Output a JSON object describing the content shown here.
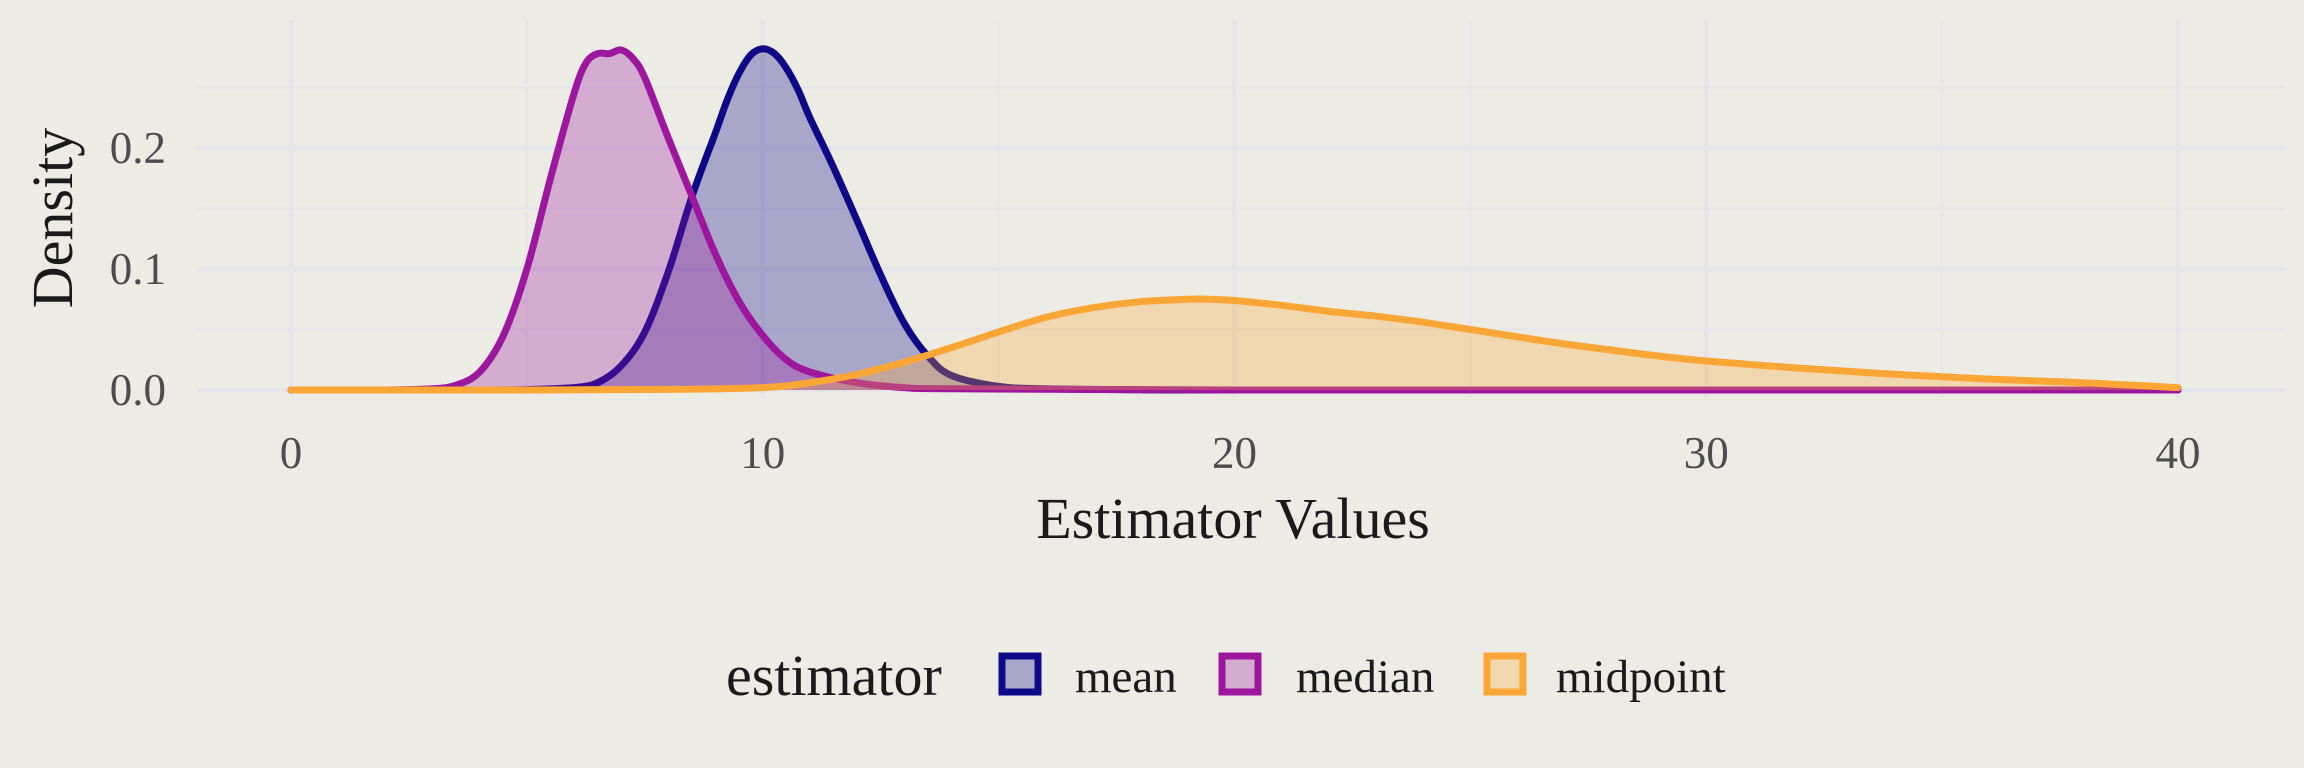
{
  "chart_data": {
    "type": "area",
    "title": "",
    "xlabel": "Estimator Values",
    "ylabel": "Density",
    "xlim": [
      -2,
      42
    ],
    "ylim": [
      -0.002,
      0.295
    ],
    "x_ticks": [
      0,
      10,
      20,
      30,
      40
    ],
    "x_tick_labels": [
      "0",
      "10",
      "20",
      "30",
      "40"
    ],
    "y_ticks": [
      0.0,
      0.1,
      0.2
    ],
    "y_tick_labels": [
      "0.0",
      "0.1",
      "0.2"
    ],
    "grid": true,
    "legend": {
      "title": "estimator",
      "placement": "bottom"
    },
    "series": [
      {
        "name": "mean",
        "color": "#0d0887",
        "fill": "#0d0887",
        "x": [
          0,
          2,
          3,
          4,
          5,
          6,
          6.5,
          7,
          7.5,
          8,
          8.5,
          9,
          9.25,
          9.5,
          9.75,
          10,
          10.25,
          10.5,
          10.75,
          11,
          11.5,
          12,
          12.5,
          13,
          13.5,
          14,
          15,
          16,
          18,
          20,
          25,
          30,
          40
        ],
        "y": [
          0,
          0,
          0,
          0,
          0.0003,
          0.002,
          0.006,
          0.02,
          0.048,
          0.098,
          0.16,
          0.213,
          0.24,
          0.262,
          0.277,
          0.282,
          0.278,
          0.266,
          0.248,
          0.225,
          0.184,
          0.14,
          0.095,
          0.055,
          0.028,
          0.012,
          0.003,
          0.001,
          0.0002,
          0,
          0,
          0,
          0
        ]
      },
      {
        "name": "median",
        "color": "#9c179e",
        "fill": "#9c179e",
        "x": [
          0,
          2,
          3,
          3.5,
          4,
          4.5,
          5,
          5.5,
          6,
          6.25,
          6.5,
          6.75,
          7,
          7.25,
          7.5,
          8,
          8.5,
          9,
          9.5,
          10,
          10.5,
          11,
          12,
          13,
          14,
          20,
          30,
          40
        ],
        "y": [
          0,
          0,
          0.001,
          0.004,
          0.015,
          0.045,
          0.1,
          0.175,
          0.245,
          0.27,
          0.278,
          0.278,
          0.281,
          0.274,
          0.258,
          0.208,
          0.16,
          0.112,
          0.073,
          0.045,
          0.025,
          0.015,
          0.006,
          0.002,
          0.001,
          0,
          0,
          0
        ]
      },
      {
        "name": "midpoint",
        "color": "#fca636",
        "fill": "#fca636",
        "x": [
          0,
          5,
          8,
          10,
          11,
          12,
          13,
          14,
          15,
          16,
          17,
          18,
          19,
          19.5,
          20,
          21,
          22,
          23,
          24,
          25,
          26,
          27,
          28,
          29,
          30,
          32,
          34,
          36,
          38,
          40
        ],
        "y": [
          0,
          0,
          0.0005,
          0.002,
          0.006,
          0.013,
          0.023,
          0.035,
          0.048,
          0.06,
          0.068,
          0.073,
          0.075,
          0.075,
          0.074,
          0.07,
          0.065,
          0.061,
          0.056,
          0.05,
          0.044,
          0.038,
          0.033,
          0.028,
          0.024,
          0.018,
          0.013,
          0.009,
          0.006,
          0.002
        ]
      }
    ]
  }
}
